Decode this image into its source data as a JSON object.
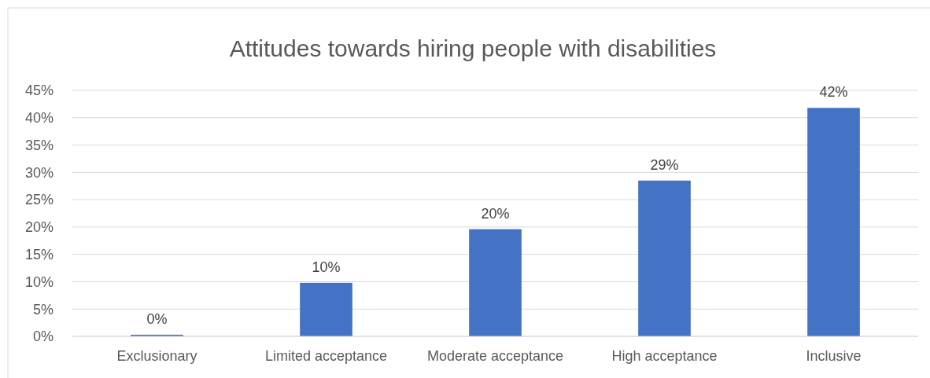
{
  "chart_data": {
    "type": "bar",
    "title": "Attitudes towards hiring people with disabilities",
    "categories": [
      "Exclusionary",
      "Limited acceptance",
      "Moderate acceptance",
      "High acceptance",
      "Inclusive"
    ],
    "values": [
      0.3,
      9.8,
      19.6,
      28.5,
      41.8
    ],
    "value_labels": [
      "0%",
      "10%",
      "20%",
      "29%",
      "42%"
    ],
    "color": "#4472c4",
    "ylim": [
      0,
      45
    ],
    "yticks": [
      {
        "value": 0,
        "label": "0%"
      },
      {
        "value": 5,
        "label": "5%"
      },
      {
        "value": 10,
        "label": "10%"
      },
      {
        "value": 15,
        "label": "15%"
      },
      {
        "value": 20,
        "label": "20%"
      },
      {
        "value": 25,
        "label": "25%"
      },
      {
        "value": 30,
        "label": "30%"
      },
      {
        "value": 35,
        "label": "35%"
      },
      {
        "value": 40,
        "label": "40%"
      },
      {
        "value": 45,
        "label": "45%"
      }
    ],
    "grid": "y"
  }
}
